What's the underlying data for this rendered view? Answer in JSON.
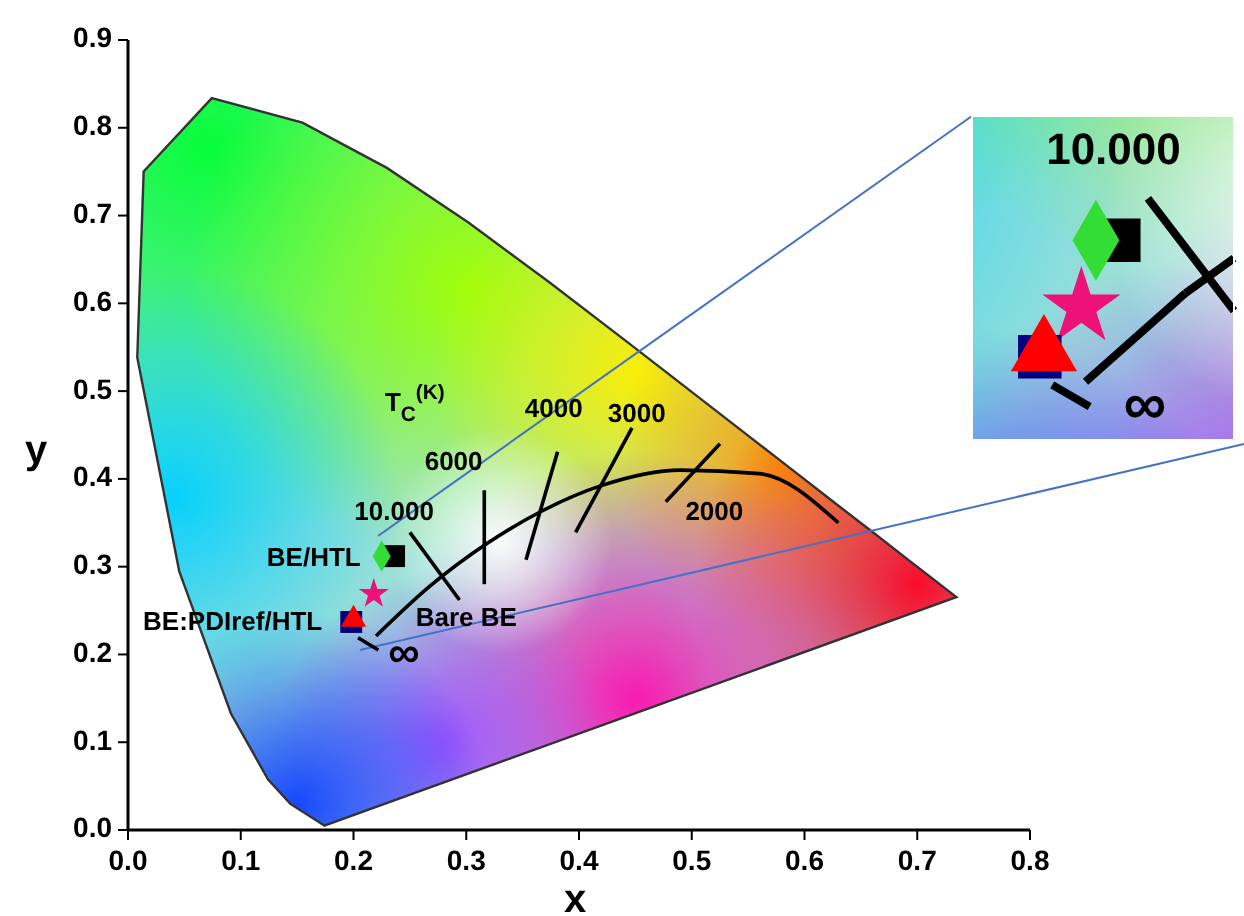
{
  "chart_data": {
    "type": "scatter",
    "xlabel": "x",
    "ylabel": "y",
    "xlim": [
      0,
      0.8
    ],
    "ylim": [
      0,
      0.9
    ],
    "xticks": [
      {
        "value": 0,
        "label": "0.0"
      },
      0.1,
      0.2,
      0.3,
      0.4,
      0.5,
      0.6,
      0.7,
      0.8
    ],
    "yticks": [
      {
        "value": 0,
        "label": "0.0"
      },
      0.1,
      0.2,
      0.3,
      0.4,
      0.5,
      0.6,
      0.7,
      0.8,
      0.9
    ],
    "grid": false,
    "series": [
      {
        "type": "line",
        "color": "#000000",
        "marker": "none",
        "x": [
          0.22,
          0.268,
          0.318,
          0.365,
          0.419,
          0.49,
          0.56,
          0.63
        ],
        "values": [
          0.221,
          0.278,
          0.326,
          0.362,
          0.392,
          0.41,
          0.406,
          0.35
        ]
      },
      {
        "type": "line",
        "color": "#000000",
        "marker": "none",
        "x": [
          0.204,
          0.222
        ],
        "values": [
          0.219,
          0.205
        ]
      },
      {
        "type": "line",
        "color": "#000000",
        "marker": "none",
        "x": [
          0.25,
          0.294
        ],
        "values": [
          0.339,
          0.262
        ]
      },
      {
        "type": "line",
        "color": "#000000",
        "marker": "none",
        "x": [
          0.316,
          0.316
        ],
        "values": [
          0.387,
          0.28
        ]
      },
      {
        "type": "line",
        "color": "#000000",
        "marker": "none",
        "x": [
          0.381,
          0.353
        ],
        "values": [
          0.431,
          0.308
        ]
      },
      {
        "type": "line",
        "color": "#000000",
        "marker": "none",
        "x": [
          0.447,
          0.397
        ],
        "values": [
          0.458,
          0.339
        ]
      },
      {
        "type": "line",
        "color": "#000000",
        "marker": "none",
        "x": [
          0.525,
          0.477
        ],
        "values": [
          0.44,
          0.374
        ]
      },
      {
        "color": "#000000",
        "marker": "square",
        "x": [
          0.236
        ],
        "values": [
          0.312
        ]
      },
      {
        "color": "#33dd33",
        "marker": "diamond",
        "x": [
          0.225
        ],
        "values": [
          0.312
        ]
      },
      {
        "color": "#ee1177",
        "marker": "star",
        "x": [
          0.218
        ],
        "values": [
          0.269
        ]
      },
      {
        "color": "#000080",
        "marker": "square",
        "x": [
          0.198
        ],
        "values": [
          0.237
        ]
      },
      {
        "color": "#ff0000",
        "marker": "triangle",
        "x": [
          0.2
        ],
        "values": [
          0.24
        ]
      }
    ],
    "annotations": [
      "T$_{C}$$^{(K)}$",
      "10.000",
      "6000",
      "4000",
      "3000",
      "2000",
      "∞",
      "BE/HTL",
      "BE:PDIref/HTL",
      "Bare BE",
      "10.000",
      "∞"
    ]
  }
}
